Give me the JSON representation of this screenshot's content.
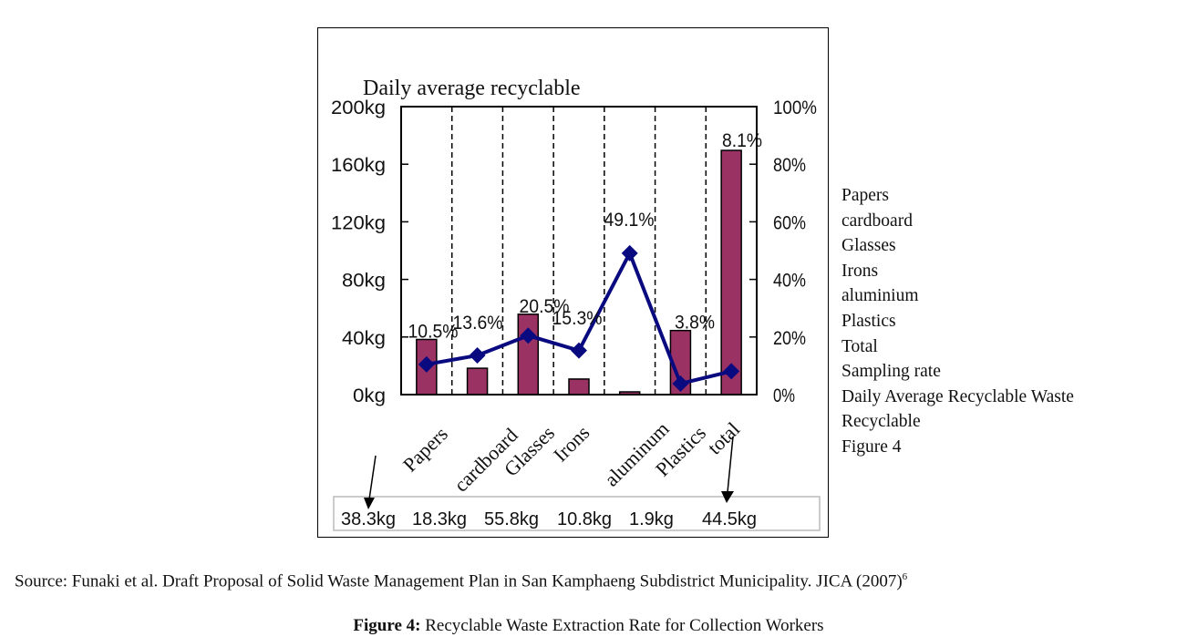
{
  "chart_data": {
    "type": "bar",
    "title": "Daily average recyclable",
    "categories": [
      "Papers",
      "cardboard",
      "Glasses",
      "Irons",
      "aluminum",
      "Plastics",
      "total"
    ],
    "series": [
      {
        "name": "Daily Average Recyclable Waste",
        "type": "bar",
        "axis": "left",
        "color": "#9B3264",
        "values": [
          38.3,
          18.3,
          55.8,
          10.8,
          1.9,
          44.5,
          169.6
        ]
      },
      {
        "name": "Sampling rate",
        "type": "line",
        "axis": "right",
        "color": "#0A0A80",
        "values": [
          10.5,
          13.6,
          20.5,
          15.3,
          49.1,
          3.8,
          8.1
        ],
        "labels": [
          "10.5%",
          "13.6%",
          "20.5%",
          "15.3%",
          "49.1%",
          "3.8%",
          "8.1%"
        ]
      }
    ],
    "y_left": {
      "range": [
        0,
        200
      ],
      "ticks": [
        "0kg",
        "40kg",
        "80kg",
        "120kg",
        "160kg",
        "200kg"
      ],
      "tick_values": [
        0,
        40,
        80,
        120,
        160,
        200
      ]
    },
    "y_right": {
      "range": [
        0,
        100
      ],
      "ticks": [
        "0%",
        "20%",
        "40%",
        "60%",
        "80%",
        "100%"
      ],
      "tick_values": [
        0,
        20,
        40,
        60,
        80,
        100
      ]
    },
    "grid": "dashed vertical category separators",
    "value_box": [
      "38.3kg",
      "18.3kg",
      "55.8kg",
      "10.8kg",
      "1.9kg",
      "44.5kg"
    ]
  },
  "legend_list": [
    "Papers",
    "cardboard",
    "Glasses",
    "Irons",
    "aluminium",
    "Plastics",
    "Total",
    "Sampling rate",
    "Daily Average Recyclable Waste",
    "Recyclable",
    "Figure 4"
  ],
  "source": {
    "text": "Source: Funaki et al. Draft Proposal of Solid Waste Management Plan in San Kamphaeng Subdistrict Municipality. JICA (2007)",
    "sup": "6"
  },
  "caption": {
    "label": "Figure 4:",
    "text": " Recyclable Waste Extraction Rate for Collection Workers"
  }
}
